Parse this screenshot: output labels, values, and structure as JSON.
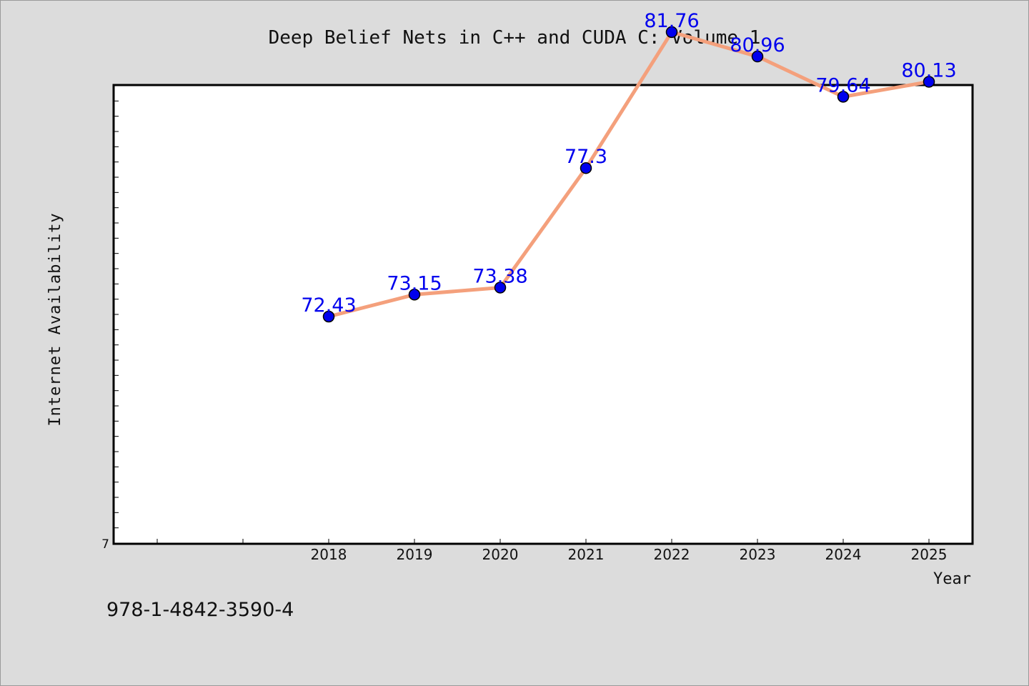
{
  "chart_data": {
    "type": "line",
    "title": "Deep Belief Nets in C++ and CUDA C: Volume 1",
    "xlabel": "Year",
    "ylabel": "Internet Availability",
    "y_tick_label": "7",
    "categories": [
      "2018",
      "2019",
      "2020",
      "2021",
      "2022",
      "2023",
      "2024",
      "2025"
    ],
    "series": [
      {
        "values": [
          72.43,
          73.15,
          73.38,
          77.3,
          81.76,
          80.96,
          79.64,
          80.13
        ],
        "data_labels": [
          "72.43",
          "73.15",
          "73.38",
          "77.3",
          "81.76",
          "80.96",
          "79.64",
          "80.13"
        ]
      }
    ],
    "ylim": [
      65,
      80
    ],
    "grid": false,
    "legend": "none",
    "colors": {
      "line": "#f4a07c",
      "marker": "#0000ee",
      "data_label": "#0000ee",
      "background": "#dcdcdc",
      "plot_background": "#ffffff"
    }
  },
  "footer": {
    "isbn": "978-1-4842-3590-4"
  }
}
